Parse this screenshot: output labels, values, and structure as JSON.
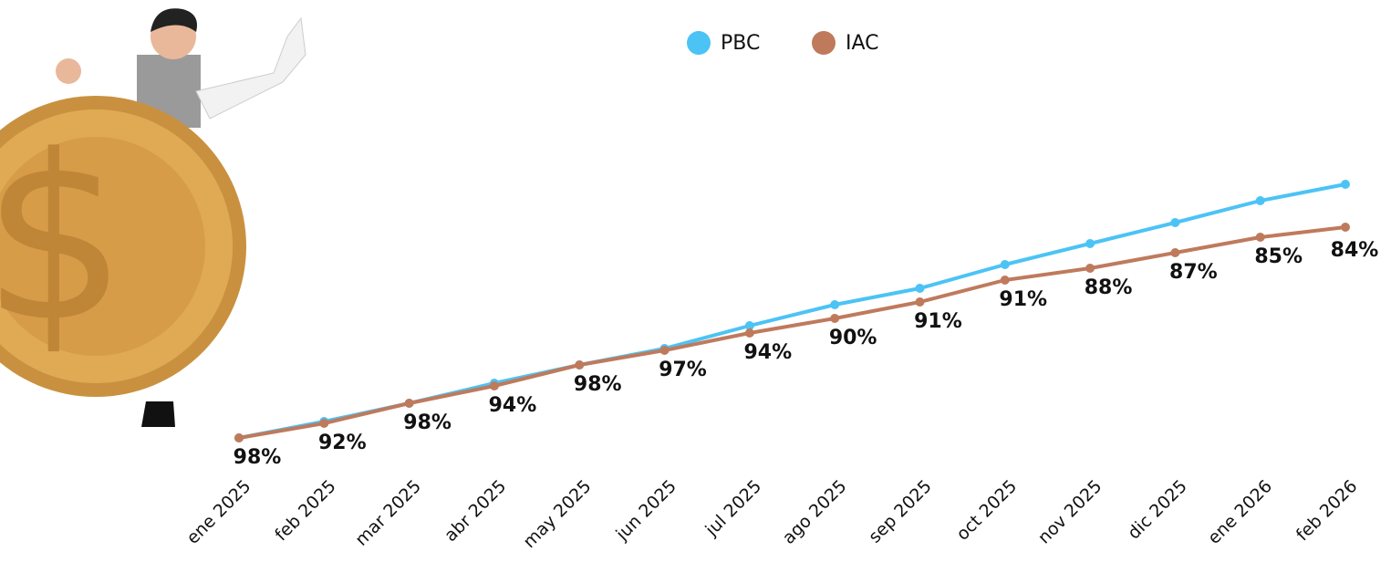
{
  "chart_data": {
    "type": "line",
    "categories": [
      "ene 2025",
      "feb 2025",
      "mar 2025",
      "abr 2025",
      "may 2025",
      "jun 2025",
      "jul 2025",
      "ago 2025",
      "sep 2025",
      "oct 2025",
      "nov 2025",
      "dic 2025",
      "ene 2026",
      "feb 2026"
    ],
    "series": [
      {
        "name": "PBC",
        "color": "#4cc3f5",
        "values": [
          20,
          24.5,
          29.5,
          35,
          40,
          44.5,
          50.75,
          56.5,
          61,
          67.5,
          73.25,
          79,
          85,
          89.5
        ]
      },
      {
        "name": "IAC",
        "color": "#bf7a5c",
        "values": [
          20,
          24,
          29.5,
          34.25,
          40,
          44,
          48.75,
          52.75,
          57.25,
          63.25,
          66.5,
          70.75,
          75,
          77.75
        ]
      }
    ],
    "annotations": [
      "98%",
      "92%",
      "98%",
      "94%",
      "98%",
      "97%",
      "94%",
      "90%",
      "91%",
      "91%",
      "88%",
      "87%",
      "85%",
      "84%"
    ],
    "ylim": [
      0,
      100
    ]
  }
}
